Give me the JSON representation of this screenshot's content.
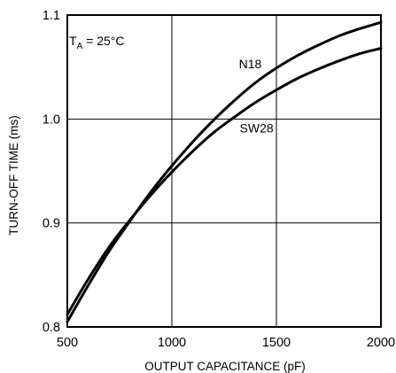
{
  "chart_data": {
    "type": "line",
    "title": "",
    "xlabel": "OUTPUT CAPACITANCE (pF)",
    "ylabel": "TURN-OFF TIME (ms)",
    "xlim": [
      500,
      2000
    ],
    "ylim": [
      0.8,
      1.1
    ],
    "x_ticks": [
      "500",
      "1000",
      "1500",
      "2000"
    ],
    "y_ticks": [
      "0.8",
      "0.9",
      "1.0",
      "1.1"
    ],
    "grid": true,
    "annotation": {
      "main": "T",
      "sub": "A",
      "rest": " = 25°C"
    },
    "x": [
      500,
      600,
      700,
      800,
      900,
      1000,
      1100,
      1200,
      1300,
      1400,
      1500,
      1600,
      1700,
      1800,
      1900,
      2000
    ],
    "series": [
      {
        "name": "N18",
        "values": [
          0.805,
          0.84,
          0.873,
          0.902,
          0.93,
          0.955,
          0.978,
          0.999,
          1.018,
          1.035,
          1.049,
          1.061,
          1.071,
          1.08,
          1.087,
          1.093
        ]
      },
      {
        "name": "SW28",
        "values": [
          0.812,
          0.846,
          0.877,
          0.903,
          0.927,
          0.949,
          0.969,
          0.987,
          1.002,
          1.016,
          1.028,
          1.039,
          1.048,
          1.056,
          1.063,
          1.068
        ]
      }
    ]
  }
}
